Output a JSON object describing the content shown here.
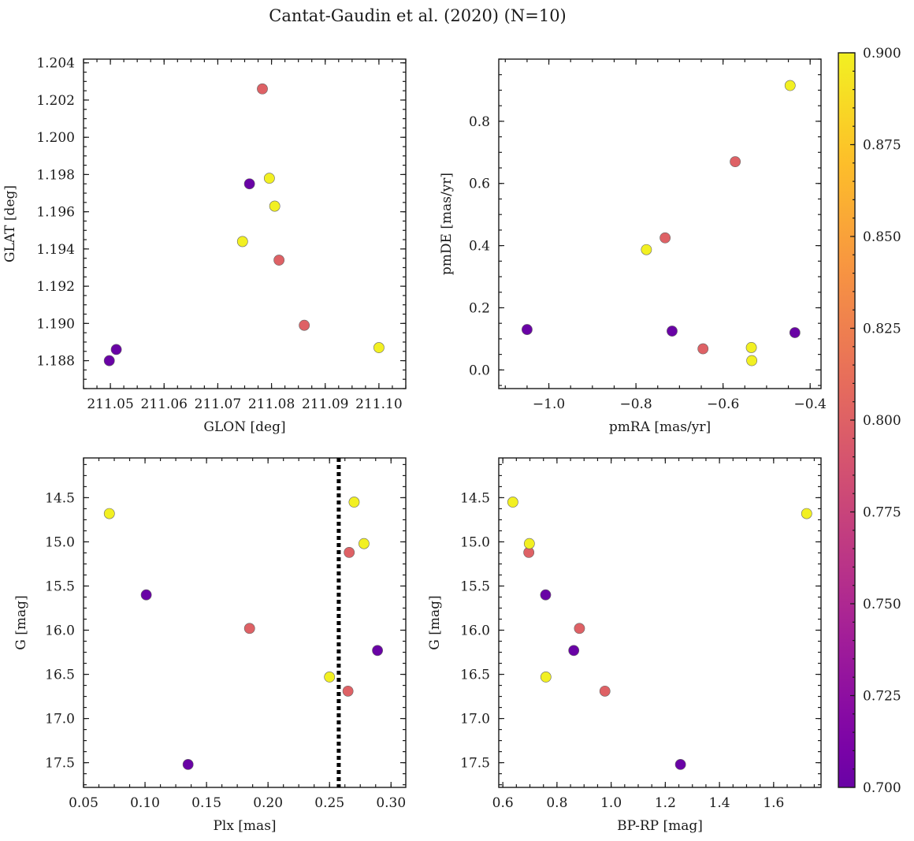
{
  "figure": {
    "title": "Cantat-Gaudin et al. (2020) (N=10)"
  },
  "colorbar": {
    "colormap": "plasma",
    "vmin": 0.7,
    "vmax": 0.9,
    "ticks": [
      0.7,
      0.725,
      0.75,
      0.775,
      0.8,
      0.825,
      0.85,
      0.875,
      0.9
    ],
    "tick_labels": [
      "0.700",
      "0.725",
      "0.750",
      "0.775",
      "0.800",
      "0.825",
      "0.850",
      "0.875",
      "0.900"
    ]
  },
  "chart_data": [
    {
      "type": "scatter",
      "xlabel": "GLON [deg]",
      "ylabel": "GLAT [deg]",
      "xlim": [
        211.045,
        211.105
      ],
      "ylim": [
        1.1865,
        1.2042
      ],
      "xticks": [
        211.05,
        211.06,
        211.07,
        211.08,
        211.09,
        211.1
      ],
      "xtick_labels": [
        "211.05",
        "211.06",
        "211.07",
        "211.08",
        "211.09",
        "211.10"
      ],
      "yticks": [
        1.188,
        1.19,
        1.192,
        1.194,
        1.196,
        1.198,
        1.2,
        1.202,
        1.204
      ],
      "ytick_labels": [
        "1.188",
        "1.190",
        "1.192",
        "1.194",
        "1.196",
        "1.198",
        "1.200",
        "1.202",
        "1.204"
      ],
      "y_inverted": false,
      "points": [
        {
          "x": 211.0498,
          "y": 1.188,
          "c": 0.7
        },
        {
          "x": 211.0511,
          "y": 1.1886,
          "c": 0.7
        },
        {
          "x": 211.0759,
          "y": 1.1975,
          "c": 0.7
        },
        {
          "x": 211.0783,
          "y": 1.2026,
          "c": 0.8
        },
        {
          "x": 211.0814,
          "y": 1.1934,
          "c": 0.8
        },
        {
          "x": 211.0861,
          "y": 1.1899,
          "c": 0.8
        },
        {
          "x": 211.0796,
          "y": 1.1978,
          "c": 0.9
        },
        {
          "x": 211.0806,
          "y": 1.1963,
          "c": 0.9
        },
        {
          "x": 211.0746,
          "y": 1.1944,
          "c": 0.9
        },
        {
          "x": 211.1,
          "y": 1.1887,
          "c": 0.9
        }
      ]
    },
    {
      "type": "scatter",
      "xlabel": "pmRA [mas/yr]",
      "ylabel": "pmDE [mas/yr]",
      "xlim": [
        -1.115,
        -0.375
      ],
      "ylim": [
        -0.06,
        1.0
      ],
      "xticks": [
        -1.0,
        -0.8,
        -0.6,
        -0.4
      ],
      "xtick_labels": [
        "−1.0",
        "−0.8",
        "−0.6",
        "−0.4"
      ],
      "yticks": [
        0.0,
        0.2,
        0.4,
        0.6,
        0.8
      ],
      "ytick_labels": [
        "0.0",
        "0.2",
        "0.4",
        "0.6",
        "0.8"
      ],
      "y_inverted": false,
      "points": [
        {
          "x": -1.05,
          "y": 0.13,
          "c": 0.7
        },
        {
          "x": -0.717,
          "y": 0.125,
          "c": 0.7
        },
        {
          "x": -0.435,
          "y": 0.12,
          "c": 0.7
        },
        {
          "x": -0.733,
          "y": 0.425,
          "c": 0.8
        },
        {
          "x": -0.572,
          "y": 0.67,
          "c": 0.8
        },
        {
          "x": -0.646,
          "y": 0.068,
          "c": 0.8
        },
        {
          "x": -0.776,
          "y": 0.387,
          "c": 0.9
        },
        {
          "x": -0.535,
          "y": 0.072,
          "c": 0.9
        },
        {
          "x": -0.534,
          "y": 0.03,
          "c": 0.9
        },
        {
          "x": -0.446,
          "y": 0.915,
          "c": 0.9
        }
      ]
    },
    {
      "type": "scatter",
      "xlabel": "Plx [mas]",
      "ylabel": "G [mag]",
      "xlim": [
        0.05,
        0.312
      ],
      "ylim": [
        17.78,
        14.05
      ],
      "xticks": [
        0.05,
        0.1,
        0.15,
        0.2,
        0.25,
        0.3
      ],
      "xtick_labels": [
        "0.05",
        "0.10",
        "0.15",
        "0.20",
        "0.25",
        "0.30"
      ],
      "yticks": [
        14.5,
        15.0,
        15.5,
        16.0,
        16.5,
        17.0,
        17.5
      ],
      "ytick_labels": [
        "14.5",
        "15.0",
        "15.5",
        "16.0",
        "16.5",
        "17.0",
        "17.5"
      ],
      "y_inverted": true,
      "vline": 0.2575,
      "points": [
        {
          "x": 0.101,
          "y": 15.6,
          "c": 0.7
        },
        {
          "x": 0.135,
          "y": 17.52,
          "c": 0.7
        },
        {
          "x": 0.289,
          "y": 16.23,
          "c": 0.7
        },
        {
          "x": 0.185,
          "y": 15.98,
          "c": 0.8
        },
        {
          "x": 0.266,
          "y": 15.12,
          "c": 0.8
        },
        {
          "x": 0.265,
          "y": 16.69,
          "c": 0.8
        },
        {
          "x": 0.071,
          "y": 14.68,
          "c": 0.9
        },
        {
          "x": 0.27,
          "y": 14.55,
          "c": 0.9
        },
        {
          "x": 0.278,
          "y": 15.02,
          "c": 0.9
        },
        {
          "x": 0.25,
          "y": 16.53,
          "c": 0.9
        }
      ]
    },
    {
      "type": "scatter",
      "xlabel": "BP-RP [mag]",
      "ylabel": "G [mag]",
      "xlim": [
        0.585,
        1.775
      ],
      "ylim": [
        17.78,
        14.05
      ],
      "xticks": [
        0.6,
        0.8,
        1.0,
        1.2,
        1.4,
        1.6
      ],
      "xtick_labels": [
        "0.6",
        "0.8",
        "1.0",
        "1.2",
        "1.4",
        "1.6"
      ],
      "yticks": [
        14.5,
        15.0,
        15.5,
        16.0,
        16.5,
        17.0,
        17.5
      ],
      "ytick_labels": [
        "14.5",
        "15.0",
        "15.5",
        "16.0",
        "16.5",
        "17.0",
        "17.5"
      ],
      "y_inverted": true,
      "points": [
        {
          "x": 0.758,
          "y": 15.6,
          "c": 0.7
        },
        {
          "x": 0.862,
          "y": 16.23,
          "c": 0.7
        },
        {
          "x": 1.256,
          "y": 17.52,
          "c": 0.7
        },
        {
          "x": 0.696,
          "y": 15.12,
          "c": 0.8
        },
        {
          "x": 0.883,
          "y": 15.98,
          "c": 0.8
        },
        {
          "x": 0.977,
          "y": 16.69,
          "c": 0.8
        },
        {
          "x": 0.637,
          "y": 14.55,
          "c": 0.9
        },
        {
          "x": 0.698,
          "y": 15.02,
          "c": 0.9
        },
        {
          "x": 0.759,
          "y": 16.53,
          "c": 0.9
        },
        {
          "x": 1.722,
          "y": 14.68,
          "c": 0.9
        }
      ]
    }
  ]
}
